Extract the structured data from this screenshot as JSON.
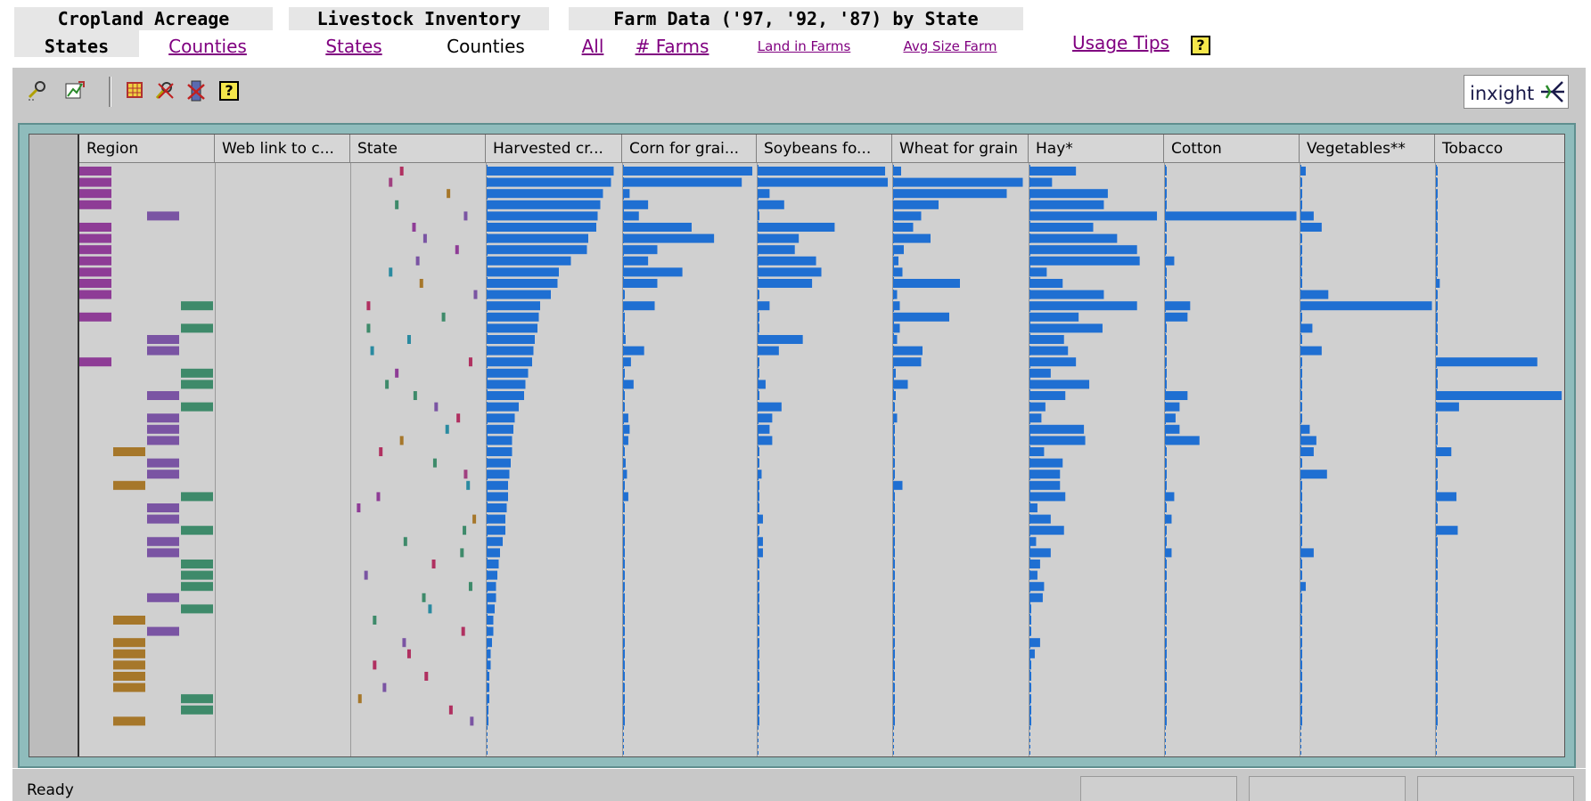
{
  "nav": {
    "groups": [
      {
        "title": "Cropland Acreage",
        "links": [
          {
            "label": "States",
            "state": "selected"
          },
          {
            "label": "Counties",
            "state": "link"
          }
        ]
      },
      {
        "title": "Livestock Inventory",
        "links": [
          {
            "label": "States",
            "state": "link"
          },
          {
            "label": "Counties",
            "state": "current"
          }
        ]
      },
      {
        "title": "Farm Data ('97, '92, '87) by State",
        "links": [
          {
            "label": "All",
            "state": "link"
          },
          {
            "label": "# Farms",
            "state": "link"
          },
          {
            "label": "Land in Farms",
            "state": "link"
          },
          {
            "label": "Avg Size Farm",
            "state": "link"
          }
        ]
      }
    ],
    "usage_tips": "Usage Tips",
    "help_glyph": "?"
  },
  "toolbar": {
    "icons": [
      "select-tool-icon",
      "chart-export-icon",
      "grid-select-icon",
      "clear-selection-icon",
      "delete-column-icon",
      "help-icon"
    ],
    "help_glyph": "?",
    "logo_text": "inxight"
  },
  "table": {
    "columns": [
      "Region",
      "Web link to c...",
      "State",
      "Harvested cr...",
      "Corn for grai...",
      "Soybeans fo...",
      "Wheat for grain",
      "Hay*",
      "Cotton",
      "Vegetables**",
      "Tobacco"
    ],
    "colors": {
      "bar": "#1f6fd2",
      "region": {
        "purple-a": "#8e3c96",
        "purple-b": "#7a54a3",
        "green": "#3e8a6a",
        "brown": "#a6772a"
      }
    },
    "region_codes": [
      "a",
      "a",
      "a",
      "a",
      "b",
      "a",
      "a",
      "a",
      "a",
      "a",
      "a",
      "a",
      "g",
      "a",
      "g",
      "b",
      "b",
      "a",
      "g",
      "g",
      "b",
      "g",
      "b",
      "b",
      "b",
      "n",
      "b",
      "b",
      "n",
      "g",
      "b",
      "b",
      "g",
      "b",
      "b",
      "g",
      "g",
      "g",
      "b",
      "g",
      "n",
      "b",
      "n",
      "n",
      "n",
      "n",
      "n",
      "g",
      "g",
      "n"
    ],
    "state_marks": [
      [
        0.36,
        "#b03060"
      ],
      [
        0.27,
        "#a04080"
      ],
      [
        0.74,
        "#a6772a"
      ],
      [
        0.32,
        "#3e8a6a"
      ],
      [
        0.88,
        "#7a54a3"
      ],
      [
        0.46,
        "#8e3c96"
      ],
      [
        0.55,
        "#7a54a3"
      ],
      [
        0.81,
        "#8e3c96"
      ],
      [
        0.49,
        "#7a54a3"
      ],
      [
        0.27,
        "#2a8aa0"
      ],
      [
        0.52,
        "#a6772a"
      ],
      [
        0.96,
        "#7a54a3"
      ],
      [
        0.09,
        "#b03060"
      ],
      [
        0.7,
        "#3e8a6a"
      ],
      [
        0.09,
        "#3e8a6a"
      ],
      [
        0.42,
        "#2a8aa0"
      ],
      [
        0.12,
        "#2a8aa0"
      ],
      [
        0.92,
        "#b03060"
      ],
      [
        0.32,
        "#8e3c96"
      ],
      [
        0.24,
        "#3e8a6a"
      ],
      [
        0.47,
        "#3e8a6a"
      ],
      [
        0.64,
        "#7a54a3"
      ],
      [
        0.82,
        "#b03060"
      ],
      [
        0.73,
        "#2a8aa0"
      ],
      [
        0.36,
        "#a6772a"
      ],
      [
        0.19,
        "#b03060"
      ],
      [
        0.63,
        "#3e8a6a"
      ],
      [
        0.88,
        "#a04080"
      ],
      [
        0.9,
        "#2a8aa0"
      ],
      [
        0.17,
        "#8e3c96"
      ],
      [
        0.01,
        "#8e3c96"
      ],
      [
        0.95,
        "#a6772a"
      ],
      [
        0.87,
        "#3e8a6a"
      ],
      [
        0.39,
        "#3e8a6a"
      ],
      [
        0.85,
        "#3e8a6a"
      ],
      [
        0.62,
        "#b03060"
      ],
      [
        0.07,
        "#7a54a3"
      ],
      [
        0.92,
        "#3e8a6a"
      ],
      [
        0.54,
        "#3e8a6a"
      ],
      [
        0.59,
        "#2a8aa0"
      ],
      [
        0.14,
        "#3e8a6a"
      ],
      [
        0.86,
        "#b03060"
      ],
      [
        0.38,
        "#7a54a3"
      ],
      [
        0.42,
        "#b03060"
      ],
      [
        0.14,
        "#b03060"
      ],
      [
        0.56,
        "#b03060"
      ],
      [
        0.22,
        "#7a54a3"
      ],
      [
        0.02,
        "#a6772a"
      ],
      [
        0.76,
        "#b03060"
      ],
      [
        0.93,
        "#7a54a3"
      ]
    ],
    "metrics": {
      "harvested": [
        0.95,
        0.93,
        0.87,
        0.85,
        0.83,
        0.82,
        0.76,
        0.75,
        0.63,
        0.54,
        0.53,
        0.48,
        0.4,
        0.39,
        0.38,
        0.36,
        0.35,
        0.34,
        0.31,
        0.29,
        0.28,
        0.24,
        0.21,
        0.2,
        0.19,
        0.19,
        0.18,
        0.17,
        0.16,
        0.16,
        0.15,
        0.14,
        0.14,
        0.12,
        0.1,
        0.09,
        0.08,
        0.07,
        0.07,
        0.06,
        0.05,
        0.05,
        0.04,
        0.03,
        0.03,
        0.02,
        0.02,
        0.02,
        0.01,
        0.01
      ],
      "corn": [
        0.98,
        0.9,
        0.05,
        0.19,
        0.12,
        0.52,
        0.69,
        0.26,
        0.19,
        0.45,
        0.26,
        0.01,
        0.24,
        0.01,
        0.01,
        0.02,
        0.16,
        0.06,
        0.01,
        0.08,
        0.01,
        0.01,
        0.04,
        0.05,
        0.04,
        0.01,
        0.02,
        0.03,
        0.01,
        0.04,
        0.01,
        0.01,
        0.01,
        0.01,
        0.01,
        0.01,
        0.01,
        0.01,
        0.01,
        0.01,
        0.01,
        0.01,
        0.01,
        0.01,
        0.01,
        0.01,
        0.01,
        0.01,
        0.01,
        0.01
      ],
      "soy": [
        0.96,
        0.98,
        0.09,
        0.2,
        0.01,
        0.58,
        0.31,
        0.28,
        0.44,
        0.48,
        0.41,
        0.01,
        0.09,
        0.01,
        0.01,
        0.34,
        0.16,
        0.01,
        0.01,
        0.06,
        0.01,
        0.18,
        0.11,
        0.09,
        0.11,
        0.01,
        0.01,
        0.03,
        0.01,
        0.01,
        0.01,
        0.04,
        0.01,
        0.04,
        0.04,
        0.01,
        0.01,
        0.01,
        0.01,
        0.01,
        0.01,
        0.01,
        0.01,
        0.01,
        0.01,
        0.01,
        0.01,
        0.01,
        0.01,
        0.01
      ],
      "wheat": [
        0.06,
        0.97,
        0.85,
        0.34,
        0.21,
        0.15,
        0.28,
        0.08,
        0.04,
        0.07,
        0.5,
        0.03,
        0.05,
        0.42,
        0.05,
        0.03,
        0.22,
        0.21,
        0.02,
        0.11,
        0.02,
        0.01,
        0.03,
        0.01,
        0.01,
        0.01,
        0.01,
        0.01,
        0.07,
        0.01,
        0.01,
        0.01,
        0.01,
        0.01,
        0.01,
        0.01,
        0.01,
        0.01,
        0.01,
        0.01,
        0.01,
        0.01,
        0.01,
        0.01,
        0.01,
        0.01,
        0.01,
        0.01,
        0.01,
        0.01
      ],
      "hay": [
        0.35,
        0.17,
        0.59,
        0.56,
        0.96,
        0.48,
        0.66,
        0.81,
        0.83,
        0.13,
        0.25,
        0.56,
        0.81,
        0.37,
        0.55,
        0.26,
        0.29,
        0.35,
        0.16,
        0.45,
        0.27,
        0.12,
        0.09,
        0.41,
        0.42,
        0.11,
        0.25,
        0.23,
        0.23,
        0.27,
        0.06,
        0.16,
        0.26,
        0.05,
        0.16,
        0.08,
        0.06,
        0.11,
        0.1,
        0.01,
        0.01,
        0.01,
        0.08,
        0.04,
        0.01,
        0.01,
        0.01,
        0.01,
        0.01,
        0.01
      ],
      "cotton": [
        0.01,
        0.01,
        0.01,
        0.01,
        0.99,
        0.01,
        0.01,
        0.01,
        0.07,
        0.01,
        0.01,
        0.01,
        0.19,
        0.17,
        0.01,
        0.01,
        0.01,
        0.01,
        0.01,
        0.01,
        0.17,
        0.11,
        0.08,
        0.11,
        0.26,
        0.01,
        0.01,
        0.01,
        0.01,
        0.07,
        0.01,
        0.05,
        0.01,
        0.01,
        0.05,
        0.01,
        0.01,
        0.01,
        0.01,
        0.01,
        0.01,
        0.01,
        0.01,
        0.01,
        0.01,
        0.01,
        0.01,
        0.01,
        0.01,
        0.01
      ],
      "veg": [
        0.04,
        0.01,
        0.01,
        0.01,
        0.1,
        0.16,
        0.01,
        0.01,
        0.01,
        0.01,
        0.01,
        0.21,
        0.99,
        0.01,
        0.09,
        0.01,
        0.16,
        0.01,
        0.01,
        0.01,
        0.01,
        0.01,
        0.01,
        0.07,
        0.12,
        0.1,
        0.01,
        0.2,
        0.01,
        0.01,
        0.01,
        0.01,
        0.01,
        0.01,
        0.1,
        0.01,
        0.01,
        0.04,
        0.01,
        0.01,
        0.01,
        0.01,
        0.01,
        0.01,
        0.01,
        0.01,
        0.01,
        0.01,
        0.01,
        0.01
      ],
      "tobacco": [
        0.01,
        0.01,
        0.01,
        0.01,
        0.01,
        0.01,
        0.01,
        0.01,
        0.01,
        0.01,
        0.03,
        0.01,
        0.01,
        0.01,
        0.01,
        0.01,
        0.01,
        0.79,
        0.01,
        0.01,
        0.98,
        0.18,
        0.01,
        0.01,
        0.01,
        0.12,
        0.01,
        0.01,
        0.01,
        0.16,
        0.01,
        0.01,
        0.17,
        0.01,
        0.01,
        0.01,
        0.01,
        0.01,
        0.01,
        0.01,
        0.01,
        0.01,
        0.01,
        0.01,
        0.01,
        0.01,
        0.01,
        0.01,
        0.01,
        0.01
      ]
    }
  },
  "status": {
    "text": "Ready"
  }
}
